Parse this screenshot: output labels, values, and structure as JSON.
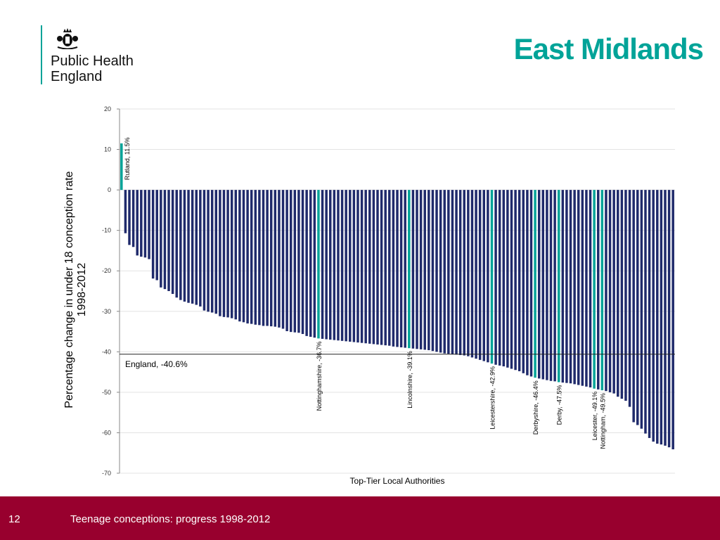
{
  "header": {
    "logo_text": [
      "Public Health",
      "England"
    ],
    "title": "East Midlands"
  },
  "colors": {
    "title": "#00a398",
    "bar": "#1f2a6b",
    "highlight": "#00a398",
    "footer": "#98002e"
  },
  "chart_data": {
    "type": "bar",
    "xlabel": "Top-Tier Local Authorities",
    "ylabel": "Percentage change in under 18 conception rate 1998-2012",
    "ylim": [
      -70,
      20
    ],
    "yticks": [
      20,
      10,
      0,
      -10,
      -20,
      -30,
      -40,
      -50,
      -60,
      -70
    ],
    "grid": true,
    "reference_line": {
      "label": "England, -40.6%",
      "value": -40.6
    },
    "values": [
      11.5,
      -10.7,
      -13.6,
      -14.1,
      -16.2,
      -16.5,
      -16.7,
      -17.1,
      -21.9,
      -22.3,
      -24.1,
      -24.5,
      -25.0,
      -25.7,
      -26.6,
      -27.2,
      -27.6,
      -27.9,
      -28.1,
      -28.4,
      -28.8,
      -29.8,
      -30.1,
      -30.3,
      -30.6,
      -31.2,
      -31.4,
      -31.5,
      -31.7,
      -32.0,
      -32.5,
      -32.7,
      -33.0,
      -33.1,
      -33.3,
      -33.4,
      -33.6,
      -33.6,
      -33.7,
      -33.8,
      -34.0,
      -34.3,
      -34.9,
      -35.1,
      -35.2,
      -35.3,
      -35.6,
      -36.1,
      -36.3,
      -36.5,
      -36.7,
      -36.8,
      -36.9,
      -37.0,
      -37.1,
      -37.2,
      -37.3,
      -37.4,
      -37.5,
      -37.6,
      -37.7,
      -37.8,
      -37.9,
      -38.0,
      -38.1,
      -38.2,
      -38.3,
      -38.4,
      -38.5,
      -38.7,
      -38.8,
      -38.9,
      -39.0,
      -39.1,
      -39.2,
      -39.3,
      -39.4,
      -39.5,
      -39.6,
      -39.8,
      -40.0,
      -40.2,
      -40.4,
      -40.5,
      -40.6,
      -40.7,
      -40.8,
      -40.9,
      -41.1,
      -41.4,
      -41.7,
      -42.0,
      -42.3,
      -42.6,
      -42.9,
      -43.2,
      -43.4,
      -43.6,
      -43.9,
      -44.2,
      -44.5,
      -44.8,
      -45.3,
      -45.8,
      -46.1,
      -46.4,
      -46.6,
      -46.8,
      -47.0,
      -47.2,
      -47.3,
      -47.5,
      -47.6,
      -47.7,
      -47.8,
      -48.0,
      -48.2,
      -48.4,
      -48.6,
      -48.8,
      -49.1,
      -49.3,
      -49.5,
      -49.7,
      -50.0,
      -50.3,
      -51.1,
      -51.6,
      -52.1,
      -53.6,
      -57.4,
      -58.1,
      -59.0,
      -60.2,
      -61.3,
      -62.2,
      -62.7,
      -62.9,
      -63.2,
      -63.6,
      -64.1
    ],
    "highlights": [
      {
        "index": 0,
        "label": "Rutland, 11.5%"
      },
      {
        "index": 50,
        "label": "Nottinghamshire, -36.7%"
      },
      {
        "index": 73,
        "label": "Lincolnshire, -39.1%"
      },
      {
        "index": 94,
        "label": "Leicestershire, -42.9%"
      },
      {
        "index": 105,
        "label": "Derbyshire, -46.4%"
      },
      {
        "index": 111,
        "label": "Derby, -47.5%"
      },
      {
        "index": 120,
        "label": "Leicester, -49.1%"
      },
      {
        "index": 122,
        "label": "Nottingham, -49.5%"
      }
    ]
  },
  "footer": {
    "page_number": "12",
    "text": "Teenage conceptions: progress 1998-2012"
  }
}
